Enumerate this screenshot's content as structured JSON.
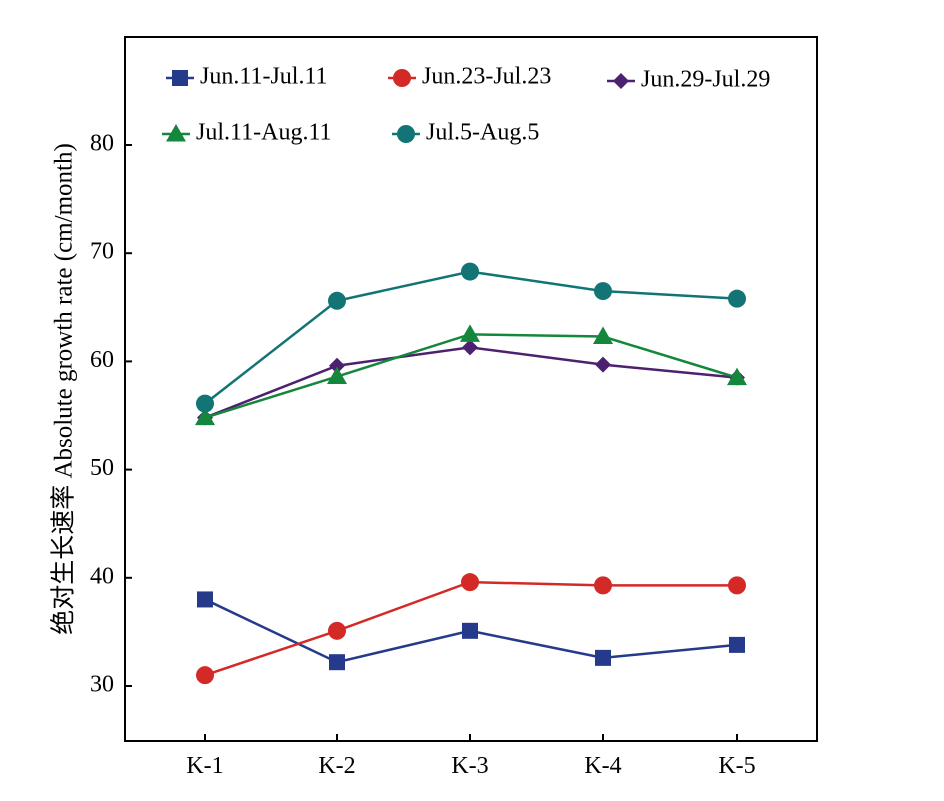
{
  "chart_data": {
    "type": "line",
    "title": "",
    "xlabel": "",
    "ylabel": "绝对生长速率 Absolute growth rate (cm/month)",
    "categories": [
      "K-1",
      "K-2",
      "K-3",
      "K-4",
      "K-5"
    ],
    "y_ticks": [
      "30",
      "40",
      "50",
      "60",
      "70",
      "80"
    ],
    "ylim": [
      25,
      90
    ],
    "grid": false,
    "legend_position": "top",
    "series": [
      {
        "name": "Jun.11-Jul.11",
        "color": "#253a8a",
        "marker": "square",
        "values": [
          38.0,
          32.2,
          35.1,
          32.6,
          33.8
        ]
      },
      {
        "name": "Jun.23-Jul.23",
        "color": "#d42a27",
        "marker": "circle",
        "values": [
          31.0,
          35.1,
          39.6,
          39.3,
          39.3
        ]
      },
      {
        "name": "Jun.29-Jul.29",
        "color": "#4c2170",
        "marker": "diamond",
        "values": [
          54.8,
          59.6,
          61.3,
          59.7,
          58.5
        ]
      },
      {
        "name": "Jul.11-Aug.11",
        "color": "#14873c",
        "marker": "triangle",
        "values": [
          54.8,
          58.6,
          62.5,
          62.3,
          58.5
        ]
      },
      {
        "name": "Jul.5-Aug.5",
        "color": "#127474",
        "marker": "circle",
        "values": [
          56.1,
          65.6,
          68.3,
          66.5,
          65.8
        ]
      }
    ]
  }
}
